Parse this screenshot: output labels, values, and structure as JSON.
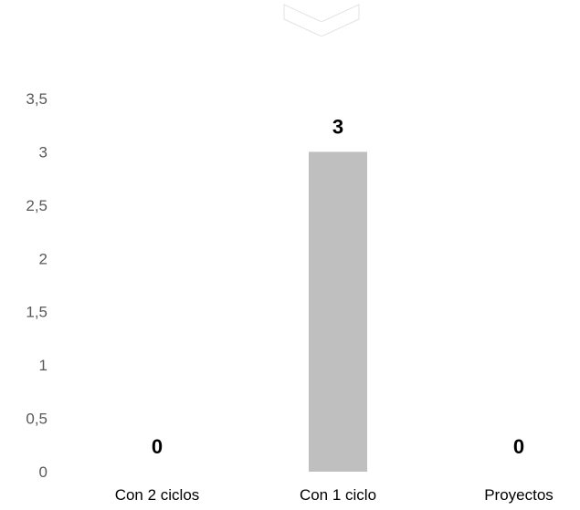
{
  "chart_data": {
    "type": "bar",
    "categories": [
      "Con 2 ciclos",
      "Con 1 ciclo",
      "Proyectos"
    ],
    "values": [
      0,
      3,
      0
    ],
    "data_labels": [
      "0",
      "3",
      "0"
    ],
    "title": "",
    "xlabel": "",
    "ylabel": "",
    "ylim": [
      0,
      3.5
    ],
    "yticks": [
      0,
      0.5,
      1,
      1.5,
      2,
      2.5,
      3,
      3.5
    ],
    "ytick_labels": [
      "0",
      "0,5",
      "1",
      "1,5",
      "2",
      "2,5",
      "3",
      "3,5"
    ],
    "grid": false,
    "legend": "none",
    "bar_color": "#bfbfbf"
  },
  "decoration": {
    "top_icon": "chevron-down-icon"
  }
}
